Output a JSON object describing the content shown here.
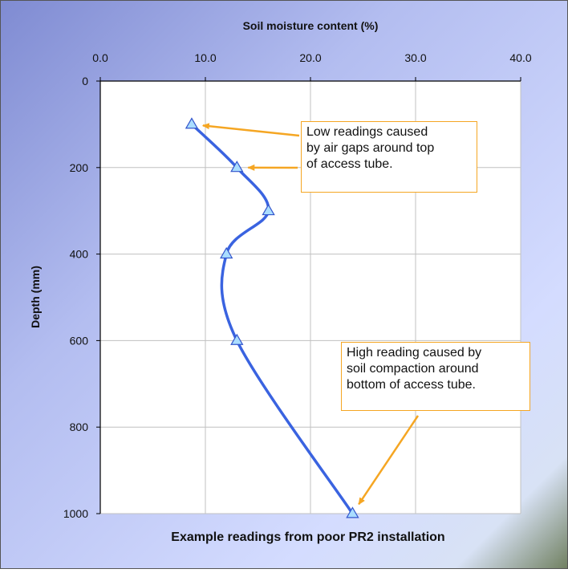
{
  "chart_data": {
    "type": "line",
    "title": "Soil moisture content (%)",
    "xlabel": "Soil moisture content (%)",
    "ylabel": "Depth (mm)",
    "caption": "Example readings from poor PR2 installation",
    "xlim": [
      0,
      40
    ],
    "ylim": [
      0,
      1000
    ],
    "y_inverted": true,
    "x_axis_position": "top",
    "x_ticks": [
      "0.0",
      "10.0",
      "20.0",
      "30.0",
      "40.0"
    ],
    "y_ticks": [
      "0",
      "200",
      "400",
      "600",
      "800",
      "1000"
    ],
    "grid": true,
    "series": [
      {
        "x": [
          8.7,
          13.0,
          16.0,
          12.0,
          13.0,
          24.0
        ],
        "y": [
          100,
          200,
          300,
          400,
          600,
          1000
        ],
        "color": "#3a63e0",
        "marker": "triangle"
      }
    ],
    "annotations": [
      {
        "text": "Low readings caused\nby air gaps around top\nof access tube.",
        "points_to": [
          [
            8.7,
            100
          ],
          [
            13.0,
            200
          ]
        ],
        "color": "#f5a623"
      },
      {
        "text": "High reading caused by\nsoil compaction around\nbottom of access tube.",
        "points_to": [
          [
            24.0,
            1000
          ]
        ],
        "color": "#f5a623"
      }
    ]
  },
  "colors": {
    "background_left": "#8a96d8",
    "background_right": "#dfe6ff",
    "plot_area": "#ffffff",
    "grid": "#c0c0c0",
    "line": "#3a63e0",
    "marker_fill": "#aaddff",
    "annotation_border": "#f5a623"
  }
}
